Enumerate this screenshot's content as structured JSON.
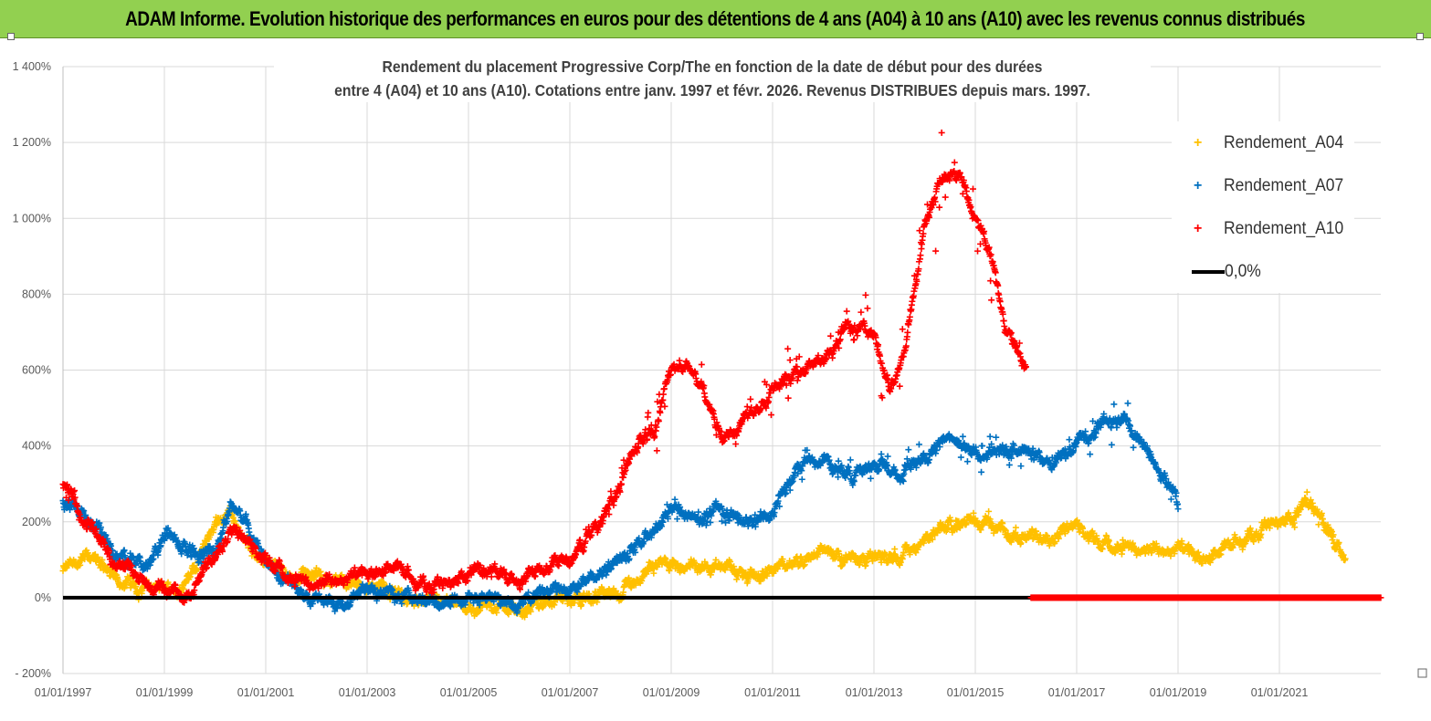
{
  "header": {
    "banner_title": "ADAM Informe. Evolution historique des performances en euros pour des détentions de 4 ans (A04) à 10 ans (A10) avec les revenus connus distribués"
  },
  "chart_data": {
    "type": "scatter",
    "title_line1": "Rendement du placement Progressive Corp/The en fonction de la date de début pour des durées",
    "title_line2": "entre 4 (A04) et 10 ans (A10).  Cotations entre janv. 1997 et févr. 2026. Revenus DISTRIBUES depuis mars. 1997.",
    "ylim": [
      -200,
      1400
    ],
    "yticks": [
      -200,
      0,
      200,
      400,
      600,
      800,
      1000,
      1200,
      1400
    ],
    "ytick_labels": [
      "- 200%",
      "0%",
      "200%",
      "400%",
      "600%",
      "800%",
      "1 000%",
      "1 200%",
      "1 400%"
    ],
    "xlim": [
      1997.0,
      2023.0
    ],
    "xticks": [
      1997,
      1999,
      2001,
      2003,
      2005,
      2007,
      2009,
      2011,
      2013,
      2015,
      2017,
      2019,
      2021
    ],
    "xtick_labels": [
      "01/01/1997",
      "01/01/1999",
      "01/01/2001",
      "01/01/2003",
      "01/01/2005",
      "01/01/2007",
      "01/01/2009",
      "01/01/2011",
      "01/01/2013",
      "01/01/2015",
      "01/01/2017",
      "01/01/2019",
      "01/01/2021"
    ],
    "legend_position": "top-right",
    "series": [
      {
        "name": "Rendement_A04",
        "color": "#ffc000",
        "marker": "plus",
        "x": [
          1997.0,
          1997.5,
          1998.0,
          1998.5,
          1999.0,
          1999.5,
          2000.0,
          2000.3,
          2000.6,
          2001.0,
          2001.5,
          2002.0,
          2002.5,
          2003.0,
          2003.5,
          2004.0,
          2004.5,
          2005.0,
          2005.5,
          2006.0,
          2006.5,
          2007.0,
          2007.5,
          2008.0,
          2008.5,
          2009.0,
          2009.5,
          2010.0,
          2010.5,
          2011.0,
          2011.5,
          2012.0,
          2012.5,
          2013.0,
          2013.5,
          2014.0,
          2014.5,
          2015.0,
          2015.5,
          2016.0,
          2016.5,
          2017.0,
          2017.5,
          2018.0,
          2018.5,
          2019.0,
          2019.5,
          2020.0,
          2020.5,
          2021.0,
          2021.3,
          2021.6,
          2022.0,
          2022.3
        ],
        "y": [
          70,
          110,
          60,
          30,
          20,
          50,
          200,
          230,
          150,
          90,
          60,
          60,
          40,
          30,
          20,
          -10,
          -20,
          -30,
          -20,
          -30,
          -20,
          0,
          0,
          20,
          70,
          100,
          80,
          90,
          50,
          80,
          90,
          130,
          100,
          100,
          120,
          140,
          190,
          210,
          180,
          160,
          170,
          190,
          140,
          130,
          120,
          130,
          100,
          130,
          170,
          200,
          210,
          250,
          170,
          110
        ]
      },
      {
        "name": "Rendement_A07",
        "color": "#0070c0",
        "marker": "plus",
        "x": [
          1997.0,
          1997.5,
          1998.0,
          1998.4,
          1998.7,
          1999.0,
          1999.5,
          2000.0,
          2000.3,
          2000.6,
          2001.0,
          2001.5,
          2002.0,
          2002.5,
          2003.0,
          2003.5,
          2004.0,
          2004.5,
          2005.0,
          2005.5,
          2006.0,
          2006.5,
          2007.0,
          2007.5,
          2008.0,
          2008.5,
          2009.0,
          2009.5,
          2010.0,
          2010.5,
          2011.0,
          2011.5,
          2012.0,
          2012.5,
          2013.0,
          2013.5,
          2014.0,
          2014.5,
          2015.0,
          2015.5,
          2016.0,
          2016.5,
          2017.0,
          2017.5,
          2018.0,
          2018.5,
          2019.0
        ],
        "y": [
          260,
          200,
          120,
          90,
          90,
          170,
          120,
          110,
          250,
          200,
          100,
          40,
          0,
          -20,
          20,
          10,
          0,
          -10,
          0,
          0,
          -20,
          10,
          30,
          50,
          100,
          150,
          230,
          200,
          230,
          200,
          220,
          340,
          370,
          320,
          350,
          320,
          380,
          430,
          380,
          380,
          390,
          360,
          400,
          460,
          460,
          370,
          250
        ]
      },
      {
        "name": "Rendement_A10",
        "color": "#ff0000",
        "marker": "plus",
        "x": [
          1997.0,
          1997.5,
          1998.0,
          1998.5,
          1999.0,
          1999.5,
          2000.0,
          2000.3,
          2000.6,
          2001.0,
          2001.5,
          2002.0,
          2002.5,
          2003.0,
          2003.5,
          2004.0,
          2004.5,
          2005.0,
          2005.5,
          2006.0,
          2006.5,
          2007.0,
          2007.5,
          2008.0,
          2008.3,
          2008.7,
          2009.0,
          2009.3,
          2009.7,
          2010.0,
          2010.5,
          2011.0,
          2011.5,
          2012.0,
          2012.5,
          2013.0,
          2013.3,
          2013.6,
          2014.0,
          2014.3,
          2014.7,
          2015.0,
          2015.3,
          2015.6,
          2016.0
        ],
        "y": [
          290,
          200,
          100,
          50,
          20,
          10,
          120,
          190,
          150,
          100,
          50,
          30,
          50,
          60,
          80,
          40,
          30,
          60,
          70,
          50,
          70,
          100,
          180,
          300,
          400,
          450,
          600,
          620,
          530,
          420,
          480,
          550,
          600,
          620,
          720,
          700,
          550,
          650,
          980,
          1100,
          1120,
          1000,
          900,
          700,
          620
        ]
      },
      {
        "name": "0,0%",
        "color": "#000000",
        "marker": "line",
        "x": [
          1997.0,
          2016.1
        ],
        "y": [
          0,
          0
        ]
      }
    ],
    "zero_marker_series": {
      "color": "#ff0000",
      "x_range": [
        2016.1,
        2023.0
      ],
      "y": 0
    }
  },
  "legend": {
    "items": [
      {
        "label": "Rendement_A04",
        "color": "#ffc000",
        "marker": "plus"
      },
      {
        "label": "Rendement_A07",
        "color": "#0070c0",
        "marker": "plus"
      },
      {
        "label": "Rendement_A10",
        "color": "#ff0000",
        "marker": "plus"
      },
      {
        "label": "0,0%",
        "color": "#000000",
        "marker": "line"
      }
    ]
  }
}
